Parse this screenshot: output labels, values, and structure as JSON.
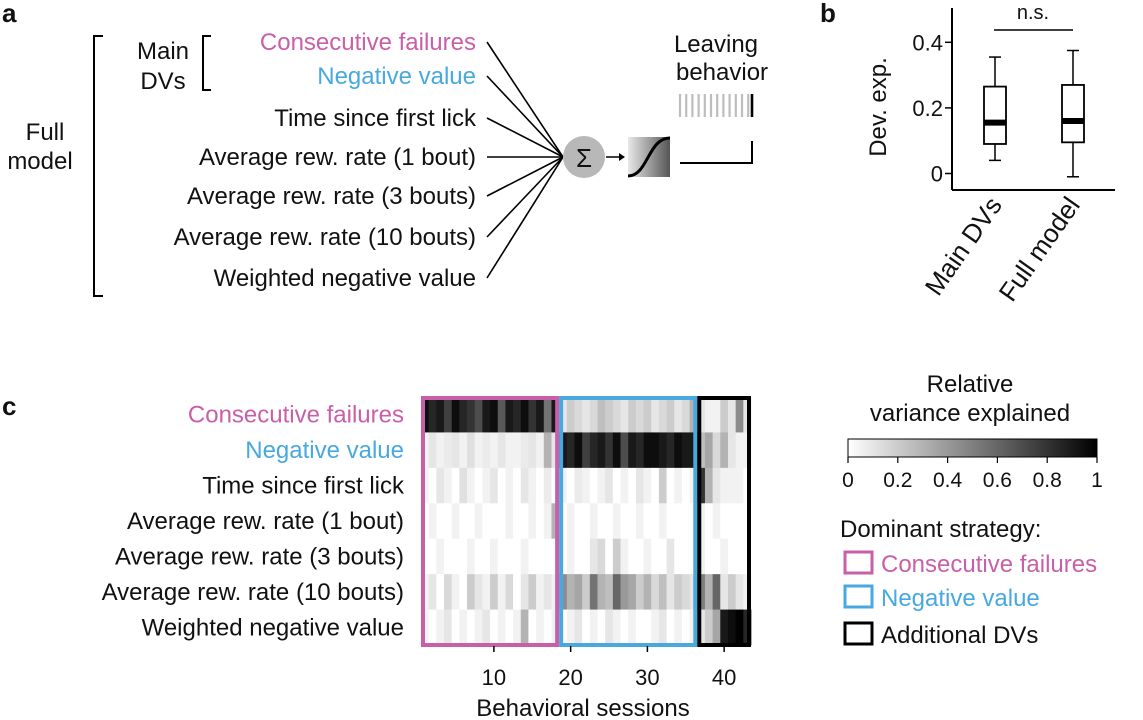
{
  "colors": {
    "consecutive_failures": "#c85fa8",
    "negative_value": "#47a9df",
    "additional": "#000000",
    "sigma_fill": "#b5b5b5"
  },
  "panel_a": {
    "letter": "a",
    "full_model_line1": "Full",
    "full_model_line2": "model",
    "main_dvs_line1": "Main",
    "main_dvs_line2": "DVs",
    "variables": [
      "Consecutive failures",
      "Negative value",
      "Time since first lick",
      "Average rew. rate (1 bout)",
      "Average rew. rate (3 bouts)",
      "Average rew. rate (10 bouts)",
      "Weighted negative value"
    ],
    "sigma": "Σ",
    "leaving_line1": "Leaving",
    "leaving_line2": "behavior"
  },
  "panel_b": {
    "letter": "b",
    "ylabel": "Dev. exp.",
    "yticks": [
      "0",
      "0.2",
      "0.4"
    ],
    "significance": "n.s."
  },
  "panel_c": {
    "letter": "c",
    "xlabel": "Behavioral sessions",
    "xticks": [
      "10",
      "20",
      "30",
      "40"
    ],
    "colorbar_title_line1": "Relative",
    "colorbar_title_line2": "variance explained",
    "colorbar_ticks": [
      "0",
      "0.2",
      "0.4",
      "0.6",
      "0.8",
      "1"
    ],
    "legend_title": "Dominant strategy:",
    "legend_items": [
      "Consecutive failures",
      "Negative value",
      "Additional DVs"
    ]
  },
  "chart_data": [
    {
      "type": "box",
      "panel": "b",
      "ylabel": "Dev. exp.",
      "ylim": [
        0,
        0.45
      ],
      "categories": [
        "Main DVs",
        "Full model"
      ],
      "boxes": [
        {
          "name": "Main DVs",
          "whisker_low": 0.04,
          "q1": 0.09,
          "median": 0.155,
          "q3": 0.265,
          "whisker_high": 0.355
        },
        {
          "name": "Full model",
          "whisker_low": -0.01,
          "q1": 0.095,
          "median": 0.16,
          "q3": 0.27,
          "whisker_high": 0.375
        }
      ],
      "annotation": "n.s."
    },
    {
      "type": "heatmap",
      "panel": "c",
      "xlabel": "Behavioral sessions",
      "rows": [
        "Consecutive failures",
        "Negative value",
        "Time since first lick",
        "Average rew. rate (1 bout)",
        "Average rew. rate (3 bouts)",
        "Average rew. rate (10 bouts)",
        "Weighted negative value"
      ],
      "n_sessions": 43,
      "x_ticks": [
        10,
        20,
        30,
        40
      ],
      "color_range": [
        0,
        1
      ],
      "groups": [
        {
          "name": "Consecutive failures",
          "first_session": 1,
          "last_session": 18
        },
        {
          "name": "Negative value",
          "first_session": 19,
          "last_session": 36
        },
        {
          "name": "Additional DVs",
          "first_session": 37,
          "last_session": 43
        }
      ],
      "values": [
        [
          0.95,
          0.85,
          0.9,
          0.75,
          0.95,
          0.85,
          0.8,
          0.7,
          0.9,
          0.95,
          0.65,
          0.9,
          0.85,
          0.95,
          0.8,
          0.9,
          0.55,
          0.9,
          0.1,
          0.2,
          0.15,
          0.1,
          0.15,
          0.25,
          0.2,
          0.15,
          0.1,
          0.2,
          0.15,
          0.2,
          0.1,
          0.15,
          0.2,
          0.1,
          0.15,
          0.3,
          0.1,
          0.05,
          0.05,
          0.2,
          0.1,
          0.45,
          0.1
        ],
        [
          0.05,
          0.1,
          0.05,
          0.08,
          0.1,
          0.05,
          0.12,
          0.05,
          0.08,
          0.05,
          0.1,
          0.05,
          0.05,
          0.08,
          0.1,
          0.05,
          0.3,
          0.1,
          0.9,
          0.85,
          0.95,
          0.75,
          0.85,
          0.9,
          0.8,
          0.95,
          0.7,
          0.9,
          0.85,
          0.95,
          0.95,
          0.9,
          0.85,
          0.95,
          0.9,
          0.9,
          0.25,
          0.35,
          0.15,
          0.3,
          0.1,
          0.05,
          0.05
        ],
        [
          0.05,
          0.0,
          0.1,
          0.05,
          0.0,
          0.12,
          0.05,
          0.0,
          0.05,
          0.1,
          0.0,
          0.05,
          0.0,
          0.1,
          0.05,
          0.0,
          0.08,
          0.0,
          0.05,
          0.0,
          0.08,
          0.05,
          0.0,
          0.05,
          0.1,
          0.0,
          0.05,
          0.0,
          0.1,
          0.05,
          0.0,
          0.2,
          0.0,
          0.05,
          0.0,
          0.05,
          0.8,
          0.3,
          0.1,
          0.05,
          0.05,
          0.05,
          0.0
        ],
        [
          0.0,
          0.05,
          0.0,
          0.0,
          0.05,
          0.0,
          0.0,
          0.05,
          0.0,
          0.0,
          0.0,
          0.05,
          0.0,
          0.0,
          0.05,
          0.0,
          0.05,
          0.3,
          0.0,
          0.05,
          0.0,
          0.0,
          0.05,
          0.0,
          0.0,
          0.05,
          0.0,
          0.0,
          0.05,
          0.0,
          0.0,
          0.05,
          0.0,
          0.0,
          0.0,
          0.0,
          0.05,
          0.0,
          0.05,
          0.0,
          0.0,
          0.0,
          0.0
        ],
        [
          0.0,
          0.0,
          0.05,
          0.0,
          0.0,
          0.0,
          0.05,
          0.0,
          0.0,
          0.05,
          0.0,
          0.0,
          0.0,
          0.05,
          0.0,
          0.0,
          0.0,
          0.0,
          0.0,
          0.05,
          0.0,
          0.0,
          0.1,
          0.15,
          0.0,
          0.2,
          0.05,
          0.0,
          0.0,
          0.05,
          0.0,
          0.0,
          0.1,
          0.0,
          0.0,
          0.0,
          0.05,
          0.0,
          0.0,
          0.05,
          0.0,
          0.0,
          0.0
        ],
        [
          0.05,
          0.1,
          0.0,
          0.15,
          0.05,
          0.0,
          0.2,
          0.1,
          0.05,
          0.2,
          0.05,
          0.15,
          0.0,
          0.1,
          0.2,
          0.05,
          0.1,
          0.05,
          0.45,
          0.3,
          0.35,
          0.2,
          0.55,
          0.3,
          0.25,
          0.6,
          0.4,
          0.35,
          0.2,
          0.3,
          0.15,
          0.25,
          0.1,
          0.2,
          0.15,
          0.1,
          0.5,
          0.3,
          0.6,
          0.1,
          0.2,
          0.1,
          0.05
        ],
        [
          0.05,
          0.0,
          0.05,
          0.1,
          0.0,
          0.05,
          0.0,
          0.05,
          0.1,
          0.0,
          0.05,
          0.0,
          0.05,
          0.3,
          0.0,
          0.05,
          0.0,
          0.05,
          0.0,
          0.05,
          0.1,
          0.0,
          0.05,
          0.0,
          0.1,
          0.05,
          0.0,
          0.05,
          0.0,
          0.0,
          0.05,
          0.1,
          0.0,
          0.05,
          0.0,
          0.05,
          0.1,
          0.2,
          0.35,
          0.9,
          0.95,
          1.0,
          0.85
        ]
      ]
    }
  ]
}
